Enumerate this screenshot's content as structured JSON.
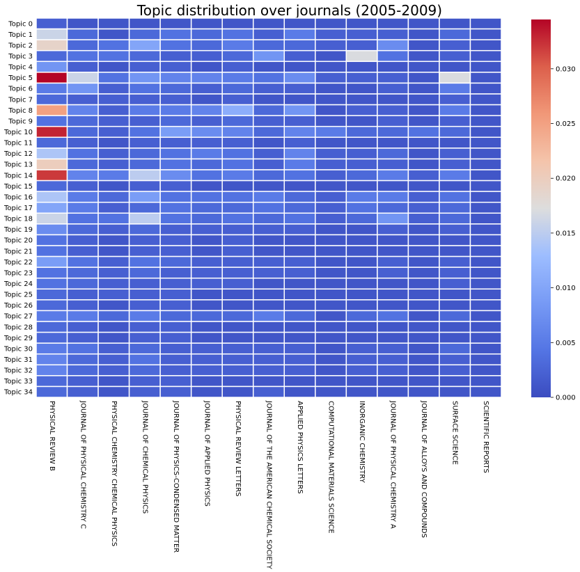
{
  "chart_data": {
    "type": "heatmap",
    "title": "Topic distribution over journals (2005-2009)",
    "colormap": "coolwarm",
    "vmin": 0.0,
    "vmax": 0.0345,
    "row_labels": [
      "Topic 0",
      "Topic 1",
      "Topic 2",
      "Topic 3",
      "Topic 4",
      "Topic 5",
      "Topic 6",
      "Topic 7",
      "Topic 8",
      "Topic 9",
      "Topic 10",
      "Topic 11",
      "Topic 12",
      "Topic 13",
      "Topic 14",
      "Topic 15",
      "Topic 16",
      "Topic 17",
      "Topic 18",
      "Topic 19",
      "Topic 20",
      "Topic 21",
      "Topic 22",
      "Topic 23",
      "Topic 24",
      "Topic 25",
      "Topic 26",
      "Topic 27",
      "Topic 28",
      "Topic 29",
      "Topic 30",
      "Topic 31",
      "Topic 32",
      "Topic 33",
      "Topic 34"
    ],
    "col_labels": [
      "PHYSICAL REVIEW B",
      "JOURNAL OF PHYSICAL CHEMISTRY C",
      "PHYSICAL CHEMISTRY CHEMICAL PHYSICS",
      "JOURNAL OF CHEMICAL PHYSICS",
      "JOURNAL OF PHYSICS-CONDENSED MATTER",
      "JOURNAL OF APPLIED PHYSICS",
      "PHYSICAL REVIEW LETTERS",
      "JOURNAL OF THE AMERICAN CHEMICAL SOCIETY",
      "APPLIED PHYSICS LETTERS",
      "COMPUTATIONAL MATERIALS SCIENCE",
      "INORGANIC CHEMISTRY",
      "JOURNAL OF PHYSICAL CHEMISTRY A",
      "JOURNAL OF ALLOYS AND COMPOUNDS",
      "SURFACE SCIENCE",
      "SCIENTIFIC REPORTS"
    ],
    "values": [
      [
        0.002,
        0.001,
        0.001,
        0.001,
        0.001,
        0.001,
        0.001,
        0.001,
        0.001,
        0.001,
        0.001,
        0.001,
        0.001,
        0.001,
        0.001
      ],
      [
        0.016,
        0.003,
        0.001,
        0.003,
        0.004,
        0.003,
        0.004,
        0.002,
        0.005,
        0.002,
        0.002,
        0.002,
        0.001,
        0.003,
        0.001
      ],
      [
        0.019,
        0.003,
        0.004,
        0.01,
        0.004,
        0.003,
        0.005,
        0.003,
        0.003,
        0.002,
        0.002,
        0.007,
        0.001,
        0.002,
        0.001
      ],
      [
        0.003,
        0.004,
        0.004,
        0.003,
        0.002,
        0.002,
        0.003,
        0.008,
        0.002,
        0.001,
        0.017,
        0.004,
        0.001,
        0.002,
        0.001
      ],
      [
        0.008,
        0.002,
        0.001,
        0.002,
        0.002,
        0.001,
        0.002,
        0.001,
        0.001,
        0.001,
        0.001,
        0.001,
        0.001,
        0.001,
        0.001
      ],
      [
        0.0345,
        0.016,
        0.004,
        0.008,
        0.006,
        0.006,
        0.005,
        0.004,
        0.007,
        0.002,
        0.002,
        0.002,
        0.001,
        0.017,
        0.001
      ],
      [
        0.005,
        0.008,
        0.002,
        0.004,
        0.003,
        0.002,
        0.003,
        0.002,
        0.002,
        0.001,
        0.001,
        0.002,
        0.001,
        0.005,
        0.001
      ],
      [
        0.003,
        0.002,
        0.002,
        0.002,
        0.002,
        0.001,
        0.002,
        0.001,
        0.001,
        0.001,
        0.001,
        0.001,
        0.001,
        0.002,
        0.001
      ],
      [
        0.025,
        0.006,
        0.002,
        0.005,
        0.005,
        0.006,
        0.011,
        0.003,
        0.008,
        0.001,
        0.002,
        0.002,
        0.001,
        0.005,
        0.001
      ],
      [
        0.004,
        0.003,
        0.002,
        0.002,
        0.003,
        0.002,
        0.003,
        0.002,
        0.002,
        0.001,
        0.001,
        0.002,
        0.001,
        0.002,
        0.001
      ],
      [
        0.033,
        0.003,
        0.002,
        0.004,
        0.009,
        0.007,
        0.006,
        0.003,
        0.006,
        0.005,
        0.003,
        0.003,
        0.004,
        0.003,
        0.001
      ],
      [
        0.003,
        0.002,
        0.001,
        0.002,
        0.002,
        0.002,
        0.002,
        0.001,
        0.002,
        0.001,
        0.001,
        0.001,
        0.001,
        0.001,
        0.001
      ],
      [
        0.014,
        0.004,
        0.002,
        0.003,
        0.004,
        0.005,
        0.004,
        0.002,
        0.006,
        0.002,
        0.002,
        0.003,
        0.001,
        0.002,
        0.001
      ],
      [
        0.02,
        0.003,
        0.002,
        0.003,
        0.004,
        0.003,
        0.004,
        0.002,
        0.005,
        0.002,
        0.002,
        0.002,
        0.001,
        0.002,
        0.001
      ],
      [
        0.032,
        0.006,
        0.005,
        0.015,
        0.007,
        0.004,
        0.005,
        0.003,
        0.004,
        0.002,
        0.003,
        0.005,
        0.002,
        0.005,
        0.001
      ],
      [
        0.003,
        0.002,
        0.001,
        0.002,
        0.002,
        0.001,
        0.001,
        0.001,
        0.001,
        0.001,
        0.001,
        0.001,
        0.001,
        0.001,
        0.001
      ],
      [
        0.014,
        0.005,
        0.003,
        0.009,
        0.004,
        0.004,
        0.004,
        0.005,
        0.003,
        0.002,
        0.005,
        0.005,
        0.002,
        0.004,
        0.001
      ],
      [
        0.01,
        0.005,
        0.002,
        0.003,
        0.004,
        0.003,
        0.003,
        0.004,
        0.003,
        0.002,
        0.004,
        0.003,
        0.002,
        0.003,
        0.001
      ],
      [
        0.016,
        0.004,
        0.004,
        0.015,
        0.004,
        0.003,
        0.004,
        0.003,
        0.004,
        0.002,
        0.003,
        0.008,
        0.002,
        0.003,
        0.001
      ],
      [
        0.007,
        0.003,
        0.002,
        0.003,
        0.002,
        0.002,
        0.002,
        0.002,
        0.002,
        0.001,
        0.001,
        0.002,
        0.001,
        0.002,
        0.001
      ],
      [
        0.004,
        0.002,
        0.001,
        0.002,
        0.002,
        0.001,
        0.002,
        0.001,
        0.001,
        0.001,
        0.001,
        0.001,
        0.001,
        0.001,
        0.001
      ],
      [
        0.004,
        0.002,
        0.001,
        0.002,
        0.002,
        0.001,
        0.002,
        0.001,
        0.001,
        0.001,
        0.001,
        0.001,
        0.001,
        0.001,
        0.001
      ],
      [
        0.009,
        0.004,
        0.002,
        0.004,
        0.003,
        0.002,
        0.002,
        0.002,
        0.002,
        0.001,
        0.001,
        0.002,
        0.001,
        0.002,
        0.001
      ],
      [
        0.004,
        0.003,
        0.002,
        0.003,
        0.002,
        0.002,
        0.002,
        0.002,
        0.002,
        0.001,
        0.001,
        0.002,
        0.001,
        0.002,
        0.001
      ],
      [
        0.004,
        0.003,
        0.002,
        0.002,
        0.002,
        0.002,
        0.002,
        0.001,
        0.001,
        0.001,
        0.001,
        0.001,
        0.001,
        0.002,
        0.001
      ],
      [
        0.003,
        0.002,
        0.002,
        0.002,
        0.002,
        0.001,
        0.001,
        0.001,
        0.001,
        0.001,
        0.001,
        0.001,
        0.001,
        0.001,
        0.001
      ],
      [
        0.003,
        0.002,
        0.001,
        0.002,
        0.002,
        0.001,
        0.001,
        0.001,
        0.001,
        0.001,
        0.001,
        0.001,
        0.001,
        0.001,
        0.001
      ],
      [
        0.005,
        0.005,
        0.003,
        0.005,
        0.003,
        0.003,
        0.003,
        0.005,
        0.003,
        0.001,
        0.003,
        0.004,
        0.001,
        0.003,
        0.001
      ],
      [
        0.003,
        0.002,
        0.001,
        0.002,
        0.002,
        0.001,
        0.001,
        0.001,
        0.001,
        0.001,
        0.001,
        0.001,
        0.001,
        0.001,
        0.001
      ],
      [
        0.003,
        0.002,
        0.001,
        0.002,
        0.002,
        0.001,
        0.001,
        0.001,
        0.001,
        0.001,
        0.001,
        0.001,
        0.001,
        0.001,
        0.001
      ],
      [
        0.005,
        0.004,
        0.002,
        0.003,
        0.002,
        0.002,
        0.002,
        0.002,
        0.002,
        0.001,
        0.002,
        0.002,
        0.001,
        0.003,
        0.001
      ],
      [
        0.006,
        0.003,
        0.002,
        0.004,
        0.002,
        0.002,
        0.002,
        0.002,
        0.002,
        0.001,
        0.002,
        0.002,
        0.001,
        0.002,
        0.001
      ],
      [
        0.006,
        0.003,
        0.002,
        0.003,
        0.002,
        0.002,
        0.002,
        0.002,
        0.002,
        0.001,
        0.002,
        0.002,
        0.001,
        0.002,
        0.001
      ],
      [
        0.003,
        0.002,
        0.001,
        0.002,
        0.002,
        0.001,
        0.001,
        0.001,
        0.001,
        0.001,
        0.001,
        0.001,
        0.001,
        0.001,
        0.001
      ],
      [
        0.003,
        0.002,
        0.001,
        0.002,
        0.002,
        0.001,
        0.001,
        0.002,
        0.001,
        0.001,
        0.001,
        0.001,
        0.001,
        0.001,
        0.001
      ]
    ],
    "colorbar": {
      "ticks": [
        0.0,
        0.005,
        0.01,
        0.015,
        0.02,
        0.025,
        0.03
      ],
      "tick_labels": [
        "0.000",
        "0.005",
        "0.010",
        "0.015",
        "0.020",
        "0.025",
        "0.030"
      ]
    },
    "grid": true,
    "legend": "colorbar at right"
  }
}
